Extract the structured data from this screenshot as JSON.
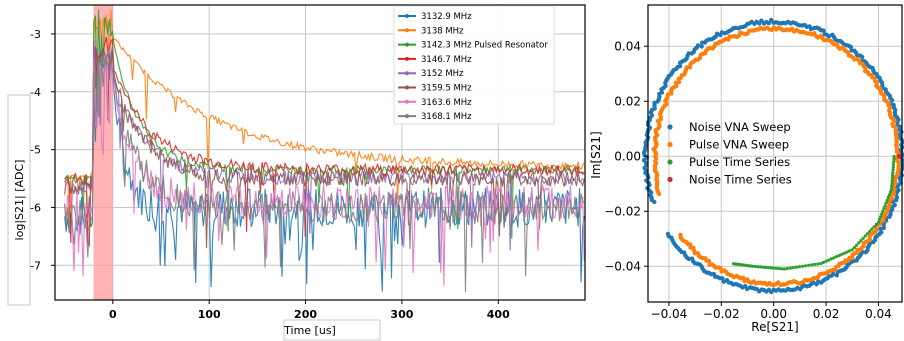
{
  "chart_data": [
    {
      "type": "line",
      "xlabel": "Time [us]",
      "ylabel": "log|S21| [ADC]",
      "xlim": [
        -60,
        490
      ],
      "ylim": [
        -7.6,
        -2.5
      ],
      "xticks": [
        0,
        100,
        200,
        300,
        400
      ],
      "xtick_labels": [
        "0",
        "100",
        "200",
        "300",
        "400"
      ],
      "yticks": [
        -3,
        -4,
        -5,
        -6,
        -7
      ],
      "ytick_labels": [
        "-3",
        "-4",
        "-5",
        "-6",
        "-7"
      ],
      "grid": true,
      "legend_placement": "top-right",
      "pulse_window": [
        -20,
        0
      ],
      "pulse_window_color": "#ff9999",
      "series": [
        {
          "name": "3132.9 MHz",
          "color": "#1f77b4",
          "peak": -3.7,
          "tau": 12,
          "tail": -6.0,
          "noise": 0.35
        },
        {
          "name": "3138 MHz",
          "color": "#ff7f0e",
          "peak": -3.05,
          "tau": 105,
          "tail": -5.3,
          "noise": 0.07
        },
        {
          "name": "3142.3 MHz Pulsed Resonator",
          "color": "#2ca02c",
          "peak": -3.1,
          "tau": 28,
          "tail": -5.35,
          "noise": 0.07
        },
        {
          "name": "3146.7 MHz",
          "color": "#d62728",
          "peak": -3.55,
          "tau": 40,
          "tail": -5.35,
          "noise": 0.1
        },
        {
          "name": "3152 MHz",
          "color": "#9467bd",
          "peak": -3.7,
          "tau": 34,
          "tail": -5.5,
          "noise": 0.12
        },
        {
          "name": "3159.5 MHz",
          "color": "#8c564b",
          "peak": -3.65,
          "tau": 32,
          "tail": -5.5,
          "noise": 0.14
        },
        {
          "name": "3163.6 MHz",
          "color": "#e377c2",
          "peak": -3.85,
          "tau": 22,
          "tail": -5.9,
          "noise": 0.3
        },
        {
          "name": "3168.1 MHz",
          "color": "#7f7f7f",
          "peak": -3.75,
          "tau": 26,
          "tail": -6.0,
          "noise": 0.28
        }
      ]
    },
    {
      "type": "scatter",
      "xlabel": "Re[S21]",
      "ylabel": "Im[S21]",
      "xlim": [
        -0.048,
        0.049
      ],
      "ylim": [
        -0.053,
        0.055
      ],
      "xticks": [
        -0.04,
        -0.02,
        0.0,
        0.02,
        0.04
      ],
      "xtick_labels": [
        "−0.04",
        "−0.02",
        "0.00",
        "0.02",
        "0.04"
      ],
      "yticks": [
        0.04,
        0.02,
        0.0,
        -0.02,
        -0.04
      ],
      "ytick_labels": [
        "0.04",
        "0.02",
        "0.00",
        "−0.02",
        "−0.04"
      ],
      "grid": true,
      "legend_placement": "center-left",
      "series": [
        {
          "name": "Noise VNA Sweep",
          "color": "#1f77b4",
          "center": [
            0.0,
            0.0
          ],
          "radius": 0.049,
          "theta_deg": [
            -145,
            200
          ]
        },
        {
          "name": "Pulse VNA Sweep",
          "color": "#ff7f0e",
          "center": [
            0.001,
            0.0
          ],
          "radius": 0.0465,
          "theta_deg": [
            -142,
            197
          ]
        },
        {
          "name": "Pulse Time Series",
          "color": "#2ca02c",
          "points": [
            [
              0.046,
              0.0
            ],
            [
              0.045,
              -0.012
            ],
            [
              0.04,
              -0.024
            ],
            [
              0.03,
              -0.034
            ],
            [
              0.018,
              -0.039
            ],
            [
              0.004,
              -0.041
            ],
            [
              -0.008,
              -0.04
            ],
            [
              -0.016,
              -0.039
            ]
          ]
        },
        {
          "name": "Noise Time Series",
          "color": "#d62728",
          "points": [
            [
              0.048,
              0.0
            ]
          ]
        }
      ]
    }
  ]
}
